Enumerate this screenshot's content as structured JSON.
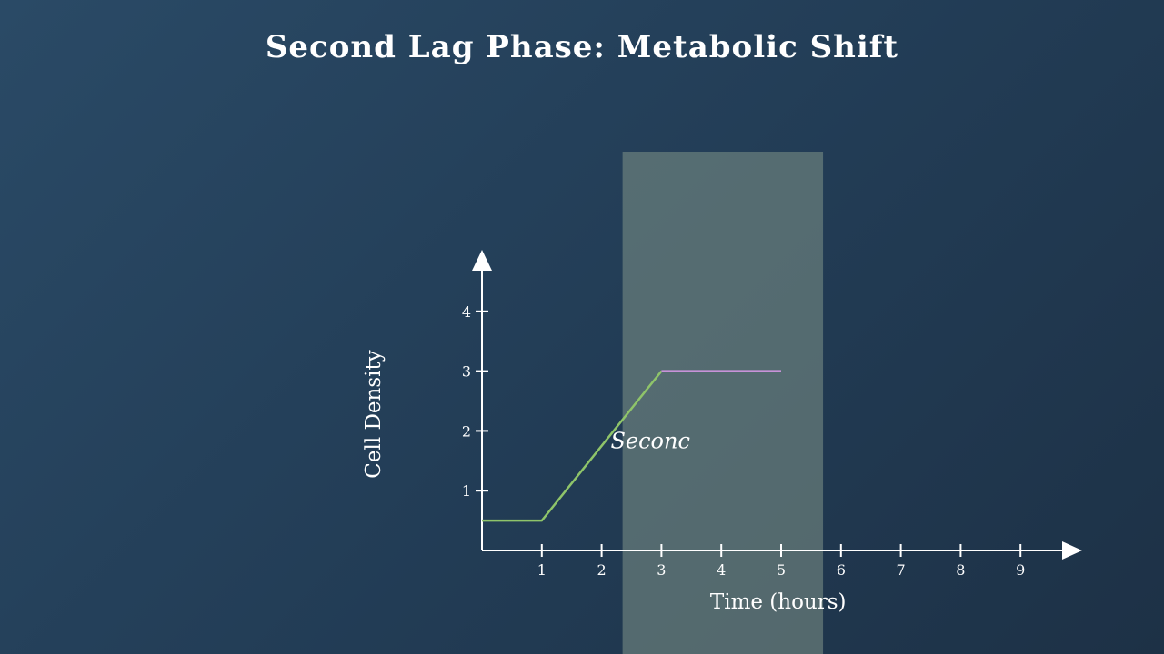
{
  "page": {
    "title": "Second Lag Phase: Metabolic Shift"
  },
  "chart_data": {
    "type": "line",
    "title": "Second Lag Phase: Metabolic Shift",
    "xlabel": "Time (hours)",
    "ylabel": "Cell Density",
    "xlim": [
      0,
      10
    ],
    "ylim": [
      0,
      4.5
    ],
    "xticks": [
      1,
      2,
      3,
      4,
      5,
      6,
      7,
      8,
      9
    ],
    "yticks": [
      1,
      2,
      3,
      4
    ],
    "grid": false,
    "series": [
      {
        "color": "#8fc46a",
        "x": [
          0,
          1,
          3
        ],
        "y": [
          0.5,
          0.5,
          3
        ]
      },
      {
        "color": "#c792d8",
        "x": [
          3,
          5
        ],
        "y": [
          3,
          3
        ]
      }
    ],
    "highlight": {
      "x_start": 2.35,
      "x_end": 5.7,
      "color": "#7f9488"
    },
    "annotation": {
      "text": "Seconc",
      "x": 2.15,
      "y": 1.8
    },
    "colors": {
      "axis": "#ffffff",
      "background_start": "#2a4a66",
      "background_end": "#1d3146"
    }
  }
}
